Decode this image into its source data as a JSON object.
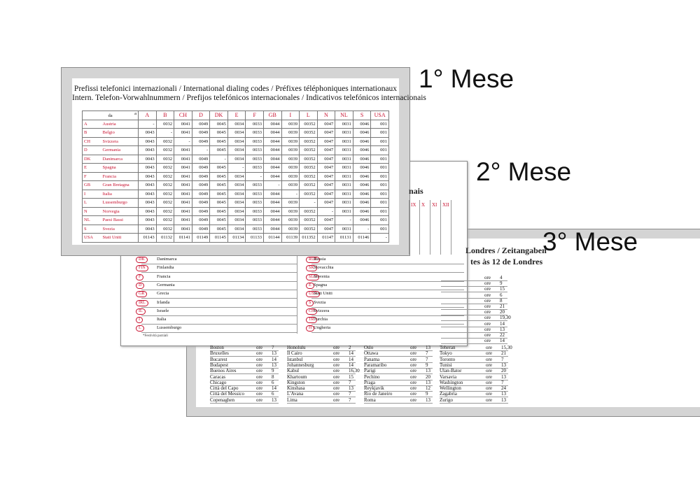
{
  "labels": [
    "1° Mese",
    "2° Mese",
    "3° Mese"
  ],
  "card1": {
    "title": [
      "Prefissi telefonici internazionali / International dialing codes / Préfixes téléphoniques internationaux",
      "Intern. Telefon-Vorwahlnummern / Prefijos telefónicos internacionales / Indicativos telefónicos internacionais"
    ],
    "corner": [
      "da",
      "a"
    ],
    "columns": [
      "A",
      "B",
      "CH",
      "D",
      "DK",
      "E",
      "F",
      "GB",
      "I",
      "L",
      "N",
      "NL",
      "S",
      "USA"
    ],
    "rows": [
      {
        "code": "A",
        "country": "Austria",
        "values": [
          "-",
          "0032",
          "0041",
          "0049",
          "0045",
          "0034",
          "0033",
          "0044",
          "0039",
          "00352",
          "0047",
          "0031",
          "0046",
          "001"
        ]
      },
      {
        "code": "B",
        "country": "Belgio",
        "values": [
          "0043",
          "-",
          "0041",
          "0049",
          "0045",
          "0034",
          "0033",
          "0044",
          "0039",
          "00352",
          "0047",
          "0031",
          "0046",
          "001"
        ]
      },
      {
        "code": "CH",
        "country": "Svizzera",
        "values": [
          "0043",
          "0032",
          "-",
          "0049",
          "0045",
          "0034",
          "0033",
          "0044",
          "0039",
          "00352",
          "0047",
          "0031",
          "0046",
          "001"
        ]
      },
      {
        "code": "D",
        "country": "Germania",
        "values": [
          "0043",
          "0032",
          "0041",
          "-",
          "0045",
          "0034",
          "0033",
          "0044",
          "0039",
          "00352",
          "0047",
          "0031",
          "0046",
          "001"
        ]
      },
      {
        "code": "DK",
        "country": "Danimarca",
        "values": [
          "0043",
          "0032",
          "0041",
          "0049",
          "-",
          "0034",
          "0033",
          "0044",
          "0039",
          "00352",
          "0047",
          "0031",
          "0046",
          "001"
        ]
      },
      {
        "code": "E",
        "country": "Spagna",
        "values": [
          "0043",
          "0032",
          "0041",
          "0049",
          "0045",
          "-",
          "0033",
          "0044",
          "0039",
          "00352",
          "0047",
          "0031",
          "0046",
          "001"
        ]
      },
      {
        "code": "F",
        "country": "Francia",
        "values": [
          "0043",
          "0032",
          "0041",
          "0049",
          "0045",
          "0034",
          "-",
          "0044",
          "0039",
          "00352",
          "0047",
          "0031",
          "0046",
          "001"
        ]
      },
      {
        "code": "GB",
        "country": "Gran Bretagna",
        "values": [
          "0043",
          "0032",
          "0041",
          "0049",
          "0045",
          "0034",
          "0033",
          "-",
          "0039",
          "00352",
          "0047",
          "0031",
          "0046",
          "001"
        ]
      },
      {
        "code": "I",
        "country": "Italia",
        "values": [
          "0043",
          "0032",
          "0041",
          "0049",
          "0045",
          "0034",
          "0033",
          "0044",
          "-",
          "00352",
          "0047",
          "0031",
          "0046",
          "001"
        ]
      },
      {
        "code": "L",
        "country": "Lussemburgo",
        "values": [
          "0043",
          "0032",
          "0041",
          "0049",
          "0045",
          "0034",
          "0033",
          "0044",
          "0039",
          "-",
          "0047",
          "0031",
          "0046",
          "001"
        ]
      },
      {
        "code": "N",
        "country": "Norvegia",
        "values": [
          "0043",
          "0032",
          "0041",
          "0049",
          "0045",
          "0034",
          "0033",
          "0044",
          "0039",
          "00352",
          "-",
          "0031",
          "0046",
          "001"
        ]
      },
      {
        "code": "NL",
        "country": "Paesi Bassi",
        "values": [
          "0043",
          "0032",
          "0041",
          "0049",
          "0045",
          "0034",
          "0033",
          "0044",
          "0039",
          "00352",
          "0047",
          "-",
          "0046",
          "001"
        ]
      },
      {
        "code": "S",
        "country": "Svezia",
        "values": [
          "0043",
          "0032",
          "0041",
          "0049",
          "0045",
          "0034",
          "0033",
          "0044",
          "0039",
          "00352",
          "0047",
          "0031",
          "-",
          "001"
        ]
      },
      {
        "code": "USA",
        "country": "Stati Uniti",
        "values": [
          "01143",
          "01132",
          "01141",
          "01149",
          "01145",
          "01134",
          "01133",
          "01144",
          "01139",
          "011352",
          "01147",
          "01131",
          "01146",
          "-"
        ]
      }
    ]
  },
  "card2": {
    "title_fragment": "nais",
    "months": [
      "IX",
      "X",
      "XI",
      "XII"
    ],
    "left_rows": [
      {
        "code": "DK",
        "country": "Danimarca"
      },
      {
        "code": "FIN",
        "country": "Finlandia"
      },
      {
        "code": "F",
        "country": "Francia"
      },
      {
        "code": "D",
        "country": "Germania"
      },
      {
        "code": "GR",
        "country": "Grecia"
      },
      {
        "code": "IRL",
        "country": "Irlanda"
      },
      {
        "code": "IL",
        "country": "Israele"
      },
      {
        "code": "I",
        "country": "Italia"
      },
      {
        "code": "L",
        "country": "Lussemburgo"
      }
    ],
    "right_rows": [
      {
        "code": "RUS",
        "country": "Russia"
      },
      {
        "code": "SK",
        "country": "Slovacchia"
      },
      {
        "code": "SLO",
        "country": "Slovenia"
      },
      {
        "code": "E",
        "country": "Spagna"
      },
      {
        "code": "USA",
        "country": "Stati Uniti"
      },
      {
        "code": "S",
        "country": "Svezia"
      },
      {
        "code": "CH",
        "country": "Svizzera"
      },
      {
        "code": "TR",
        "country": "Turchia"
      },
      {
        "code": "H",
        "country": "Ungheria"
      }
    ],
    "footnote": "*Festività parziali"
  },
  "card3": {
    "title": [
      "Londres / Zeitangaben",
      "tes às 12 de Londres"
    ],
    "unit": "ore",
    "right_hours": [
      "4",
      "9",
      "15",
      "6",
      "8",
      "21",
      "20",
      "19,30",
      "14",
      "13",
      "22",
      "14"
    ],
    "cities": [
      [
        {
          "name": "Boston",
          "hour": "7"
        },
        {
          "name": "Bruxelles",
          "hour": "13"
        },
        {
          "name": "Bucarest",
          "hour": "14"
        },
        {
          "name": "Budapest",
          "hour": "13"
        },
        {
          "name": "Buenos Aires",
          "hour": "9"
        },
        {
          "name": "Caracas",
          "hour": "8"
        },
        {
          "name": "Chicago",
          "hour": "6"
        },
        {
          "name": "Città del Capo",
          "hour": "14"
        },
        {
          "name": "Città del Messico",
          "hour": "6"
        },
        {
          "name": "Copenaghen",
          "hour": "13"
        }
      ],
      [
        {
          "name": "Honolulu",
          "hour": "2"
        },
        {
          "name": "Il Cairo",
          "hour": "14"
        },
        {
          "name": "Istanbul",
          "hour": "14"
        },
        {
          "name": "Johannesburg",
          "hour": "14"
        },
        {
          "name": "Kabul",
          "hour": "16,30"
        },
        {
          "name": "Khartoum",
          "hour": "15"
        },
        {
          "name": "Kingston",
          "hour": "7"
        },
        {
          "name": "Kinshasa",
          "hour": "13"
        },
        {
          "name": "L'Avana",
          "hour": "7"
        },
        {
          "name": "Lima",
          "hour": "7"
        }
      ],
      [
        {
          "name": "Oslo",
          "hour": "13"
        },
        {
          "name": "Ottawa",
          "hour": "7"
        },
        {
          "name": "Panama",
          "hour": "7"
        },
        {
          "name": "Paramaribo",
          "hour": "9"
        },
        {
          "name": "Parigi",
          "hour": "13"
        },
        {
          "name": "Pechino",
          "hour": "20"
        },
        {
          "name": "Praga",
          "hour": "13"
        },
        {
          "name": "Reykjavik",
          "hour": "12"
        },
        {
          "name": "Rio de Janeiro",
          "hour": "9"
        },
        {
          "name": "Roma",
          "hour": "13"
        }
      ],
      [
        {
          "name": "Teheran",
          "hour": "15,30"
        },
        {
          "name": "Tokyo",
          "hour": "21"
        },
        {
          "name": "Toronto",
          "hour": "7"
        },
        {
          "name": "Tunisi",
          "hour": "13"
        },
        {
          "name": "Ulan-Bator",
          "hour": "20"
        },
        {
          "name": "Varsavia",
          "hour": "13"
        },
        {
          "name": "Washington",
          "hour": "7"
        },
        {
          "name": "Wellington",
          "hour": "24"
        },
        {
          "name": "Zagabria",
          "hour": "13"
        },
        {
          "name": "Zurigo",
          "hour": "13"
        }
      ]
    ]
  }
}
